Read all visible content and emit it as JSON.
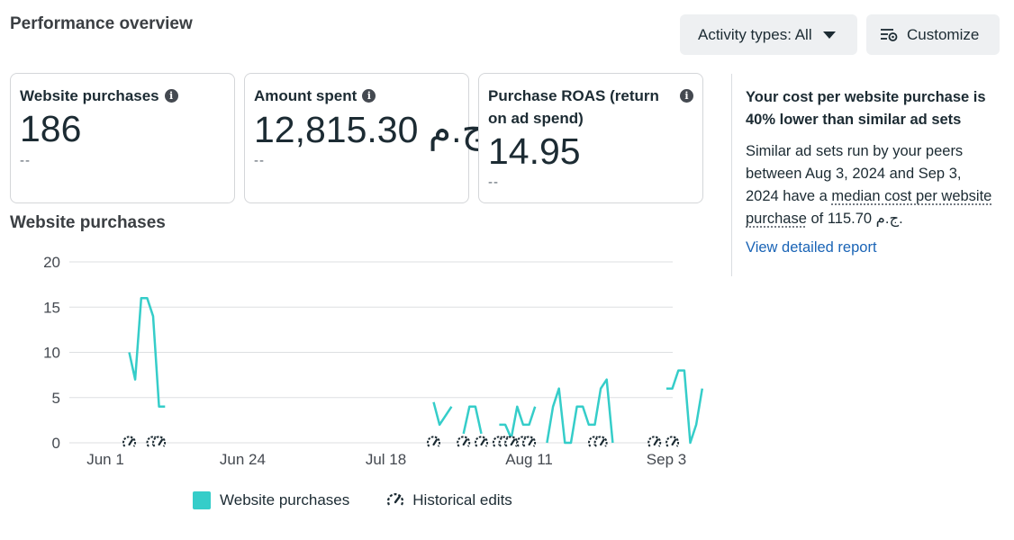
{
  "header": {
    "title": "Performance overview",
    "activity_button": "Activity types: All",
    "customize_button": "Customize"
  },
  "metrics": [
    {
      "label": "Website purchases",
      "value": "186",
      "delta": "--"
    },
    {
      "label": "Amount spent",
      "value": "12,815.30 ج.م.",
      "delta": "--"
    },
    {
      "label": "Purchase ROAS (return on ad spend)",
      "value": "14.95",
      "delta": "--"
    }
  ],
  "chart_section": {
    "title": "Website purchases"
  },
  "insight": {
    "heading": "Your cost per website purchase is 40% lower than similar ad sets",
    "body_prefix": "Similar ad sets run by your peers between Aug 3, 2024 and Sep 3, 2024 have a ",
    "body_term": "median cost per website purchase",
    "body_suffix": " of 115.70 ج.م.",
    "link": "View detailed report"
  },
  "legend": {
    "series": "Website purchases",
    "edits": "Historical edits"
  },
  "colors": {
    "series": "#35cdc9",
    "link": "#1a64b6",
    "grid": "#dddfe2"
  },
  "chart_data": {
    "type": "line",
    "title": "",
    "xlabel": "",
    "ylabel": "",
    "ylim": [
      0,
      20
    ],
    "yticks": [
      "0",
      "5",
      "10",
      "15",
      "20"
    ],
    "xticks": [
      {
        "label": "Jun 1",
        "day": 0
      },
      {
        "label": "Jun 24",
        "day": 23
      },
      {
        "label": "Jul 18",
        "day": 47
      },
      {
        "label": "Aug 11",
        "day": 71
      },
      {
        "label": "Sep 3",
        "day": 94
      }
    ],
    "series": [
      {
        "name": "Website purchases",
        "segments": [
          [
            [
              4,
              10
            ],
            [
              5,
              7
            ],
            [
              6,
              16
            ],
            [
              7,
              16
            ],
            [
              8,
              14
            ],
            [
              9,
              4
            ],
            [
              10,
              4
            ]
          ],
          [
            [
              55,
              4.5
            ],
            [
              56,
              2
            ],
            [
              58,
              4
            ]
          ],
          [
            [
              60,
              1
            ],
            [
              61,
              4
            ],
            [
              62,
              4
            ],
            [
              63,
              1
            ]
          ],
          [
            [
              66,
              2
            ],
            [
              67,
              2
            ],
            [
              68,
              0.5
            ],
            [
              69,
              4
            ],
            [
              70,
              2
            ],
            [
              71,
              2
            ],
            [
              72,
              4
            ]
          ],
          [
            [
              74,
              0
            ],
            [
              75,
              4
            ],
            [
              76,
              6
            ],
            [
              77,
              0
            ],
            [
              78,
              0
            ],
            [
              79,
              4
            ],
            [
              80,
              4
            ],
            [
              81,
              2
            ],
            [
              82,
              2
            ],
            [
              83,
              6
            ],
            [
              84,
              7
            ],
            [
              85,
              0
            ]
          ],
          [
            [
              94,
              6
            ],
            [
              95,
              6
            ],
            [
              96,
              8
            ],
            [
              97,
              8
            ],
            [
              98,
              0
            ],
            [
              99,
              2
            ],
            [
              100,
              6
            ]
          ]
        ]
      }
    ],
    "historical_edits_days": [
      4,
      8,
      9,
      55,
      60,
      63,
      66,
      67,
      68,
      70,
      71,
      82,
      83,
      92,
      95
    ]
  }
}
